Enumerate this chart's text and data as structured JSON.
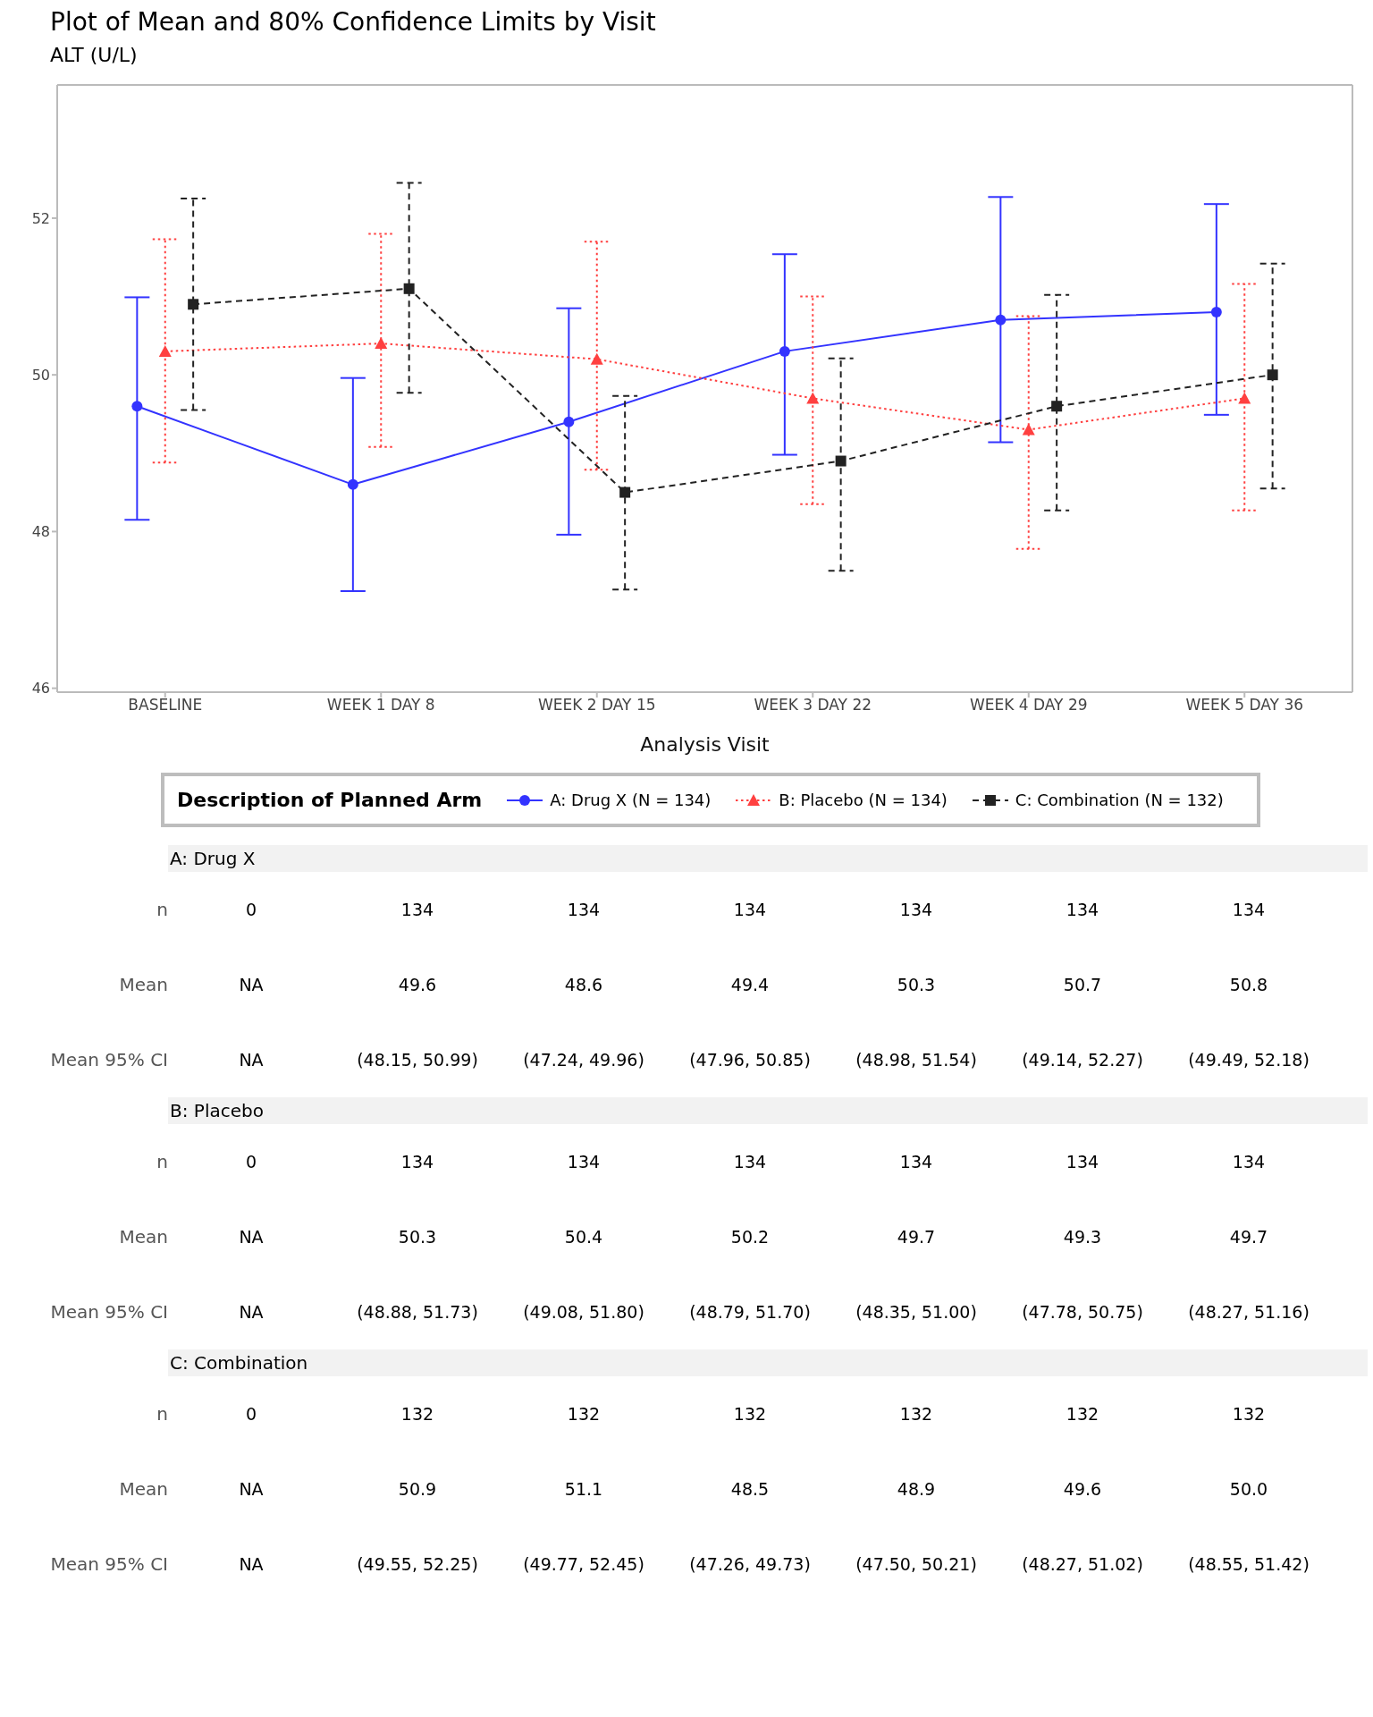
{
  "chart_data": {
    "type": "line",
    "title": "Plot of Mean and 80% Confidence Limits by Visit",
    "subtitle": "ALT (U/L)",
    "xlabel": "Analysis Visit",
    "legend_title": "Description of Planned Arm",
    "legend": "bottom",
    "categories": [
      "BASELINE",
      "WEEK 1 DAY 8",
      "WEEK 2 DAY 15",
      "WEEK 3 DAY 22",
      "WEEK 4 DAY 29",
      "WEEK 5 DAY 36"
    ],
    "ylim": [
      45.95,
      53.7
    ],
    "yticks": [
      46,
      48,
      50,
      52
    ],
    "series": [
      {
        "name": "A: Drug X (N = 134)",
        "color": "#3333ff",
        "marker": "circle",
        "line_style": "solid",
        "values": [
          49.6,
          48.6,
          49.4,
          50.3,
          50.7,
          50.8
        ],
        "errors": [
          [
            48.15,
            50.99
          ],
          [
            47.24,
            49.96
          ],
          [
            47.96,
            50.85
          ],
          [
            48.98,
            51.54
          ],
          [
            49.14,
            52.27
          ],
          [
            49.49,
            52.18
          ]
        ]
      },
      {
        "name": "B: Placebo (N = 134)",
        "color": "#ff4040",
        "marker": "triangle",
        "line_style": "dotted",
        "values": [
          50.3,
          50.4,
          50.2,
          49.7,
          49.3,
          49.7
        ],
        "errors": [
          [
            48.88,
            51.73
          ],
          [
            49.08,
            51.8
          ],
          [
            48.79,
            51.7
          ],
          [
            48.35,
            51.0
          ],
          [
            47.78,
            50.75
          ],
          [
            48.27,
            51.16
          ]
        ]
      },
      {
        "name": "C: Combination (N = 132)",
        "color": "#222222",
        "marker": "square",
        "line_style": "dashed",
        "values": [
          50.9,
          51.1,
          48.5,
          48.9,
          49.6,
          50.0
        ],
        "errors": [
          [
            49.55,
            52.25
          ],
          [
            49.77,
            52.45
          ],
          [
            47.26,
            49.73
          ],
          [
            47.5,
            50.21
          ],
          [
            48.27,
            51.02
          ],
          [
            48.55,
            51.42
          ]
        ]
      }
    ],
    "annotations": [
      "n",
      "Mean",
      "Mean 95% CI",
      "0",
      "NA",
      "A: Drug X",
      "134",
      "49.6",
      "48.6",
      "49.4",
      "50.3",
      "50.7",
      "50.8",
      "(48.15, 50.99)",
      "(47.24, 49.96)",
      "(47.96, 50.85)",
      "(48.98, 51.54)",
      "(49.14, 52.27)",
      "(49.49, 52.18)",
      "B: Placebo",
      "134",
      "50.3",
      "50.4",
      "50.2",
      "49.7",
      "49.3",
      "49.7",
      "(48.88, 51.73)",
      "(49.08, 51.80)",
      "(48.79, 51.70)",
      "(48.35, 51.00)",
      "(47.78, 50.75)",
      "(48.27, 51.16)",
      "C: Combination",
      "132",
      "50.9",
      "51.1",
      "48.5",
      "48.9",
      "49.6",
      "50.0",
      "(49.55, 52.25)",
      "(49.77, 52.45)",
      "(47.26, 49.73)",
      "(47.50, 50.21)",
      "(48.27, 51.02)",
      "(48.55, 51.42)"
    ]
  }
}
